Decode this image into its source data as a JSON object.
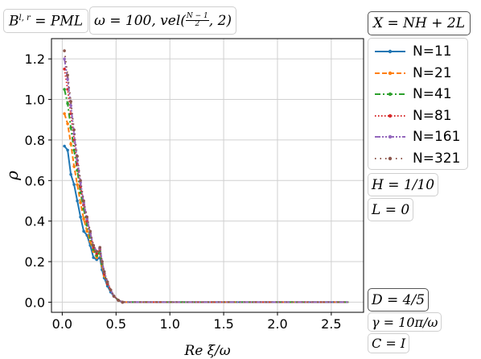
{
  "chart_data": {
    "type": "line",
    "xlabel": "Re ξ/ω",
    "ylabel": "ρ",
    "xlim": [
      -0.1,
      2.8
    ],
    "ylim": [
      -0.05,
      1.3
    ],
    "xticks": [
      "0.0",
      "0.5",
      "1.0",
      "1.5",
      "2.0",
      "2.5"
    ],
    "yticks": [
      "0.0",
      "0.2",
      "0.4",
      "0.6",
      "0.8",
      "1.0",
      "1.2"
    ],
    "grid": true,
    "legend_placement": "outside-right",
    "series": [
      {
        "name": "N=11",
        "color": "#1f77b4",
        "style": "solid",
        "points": [
          [
            0.02,
            0.77
          ],
          [
            0.05,
            0.75
          ],
          [
            0.08,
            0.63
          ],
          [
            0.11,
            0.58
          ],
          [
            0.14,
            0.5
          ],
          [
            0.17,
            0.42
          ],
          [
            0.2,
            0.35
          ],
          [
            0.23,
            0.33
          ],
          [
            0.26,
            0.28
          ],
          [
            0.29,
            0.22
          ],
          [
            0.32,
            0.21
          ],
          [
            0.35,
            0.22
          ],
          [
            0.37,
            0.16
          ],
          [
            0.39,
            0.12
          ],
          [
            0.42,
            0.08
          ],
          [
            0.45,
            0.05
          ],
          [
            0.48,
            0.03
          ],
          [
            0.52,
            0.01
          ],
          [
            0.56,
            0.0
          ],
          [
            0.8,
            0.0
          ],
          [
            1.2,
            0.0
          ],
          [
            1.6,
            0.0
          ],
          [
            2.0,
            0.0
          ],
          [
            2.4,
            0.0
          ],
          [
            2.66,
            0.0
          ]
        ]
      },
      {
        "name": "N=21",
        "color": "#ff7f0e",
        "style": "dashed",
        "points": [
          [
            0.02,
            0.93
          ],
          [
            0.05,
            0.88
          ],
          [
            0.08,
            0.78
          ],
          [
            0.11,
            0.67
          ],
          [
            0.14,
            0.58
          ],
          [
            0.17,
            0.49
          ],
          [
            0.2,
            0.41
          ],
          [
            0.23,
            0.35
          ],
          [
            0.26,
            0.3
          ],
          [
            0.29,
            0.25
          ],
          [
            0.32,
            0.22
          ],
          [
            0.35,
            0.24
          ],
          [
            0.37,
            0.18
          ],
          [
            0.39,
            0.13
          ],
          [
            0.42,
            0.09
          ],
          [
            0.45,
            0.06
          ],
          [
            0.48,
            0.03
          ],
          [
            0.52,
            0.01
          ],
          [
            0.56,
            0.0
          ],
          [
            0.8,
            0.0
          ],
          [
            1.2,
            0.0
          ],
          [
            1.6,
            0.0
          ],
          [
            2.0,
            0.0
          ],
          [
            2.4,
            0.0
          ],
          [
            2.66,
            0.0
          ]
        ]
      },
      {
        "name": "N=41",
        "color": "#2ca02c",
        "style": "dashdot",
        "points": [
          [
            0.02,
            1.05
          ],
          [
            0.05,
            0.98
          ],
          [
            0.08,
            0.86
          ],
          [
            0.11,
            0.75
          ],
          [
            0.14,
            0.65
          ],
          [
            0.17,
            0.54
          ],
          [
            0.2,
            0.46
          ],
          [
            0.23,
            0.38
          ],
          [
            0.26,
            0.32
          ],
          [
            0.29,
            0.26
          ],
          [
            0.32,
            0.23
          ],
          [
            0.35,
            0.25
          ],
          [
            0.37,
            0.19
          ],
          [
            0.39,
            0.14
          ],
          [
            0.42,
            0.09
          ],
          [
            0.45,
            0.06
          ],
          [
            0.48,
            0.03
          ],
          [
            0.52,
            0.01
          ],
          [
            0.56,
            0.0
          ],
          [
            0.8,
            0.0
          ],
          [
            1.2,
            0.0
          ],
          [
            1.6,
            0.0
          ],
          [
            2.0,
            0.0
          ],
          [
            2.4,
            0.0
          ],
          [
            2.66,
            0.0
          ]
        ]
      },
      {
        "name": "N=81",
        "color": "#d62728",
        "style": "dotted",
        "points": [
          [
            0.02,
            1.15
          ],
          [
            0.05,
            1.05
          ],
          [
            0.08,
            0.93
          ],
          [
            0.11,
            0.8
          ],
          [
            0.14,
            0.68
          ],
          [
            0.17,
            0.57
          ],
          [
            0.2,
            0.48
          ],
          [
            0.23,
            0.4
          ],
          [
            0.26,
            0.34
          ],
          [
            0.29,
            0.27
          ],
          [
            0.32,
            0.24
          ],
          [
            0.35,
            0.26
          ],
          [
            0.37,
            0.2
          ],
          [
            0.39,
            0.14
          ],
          [
            0.42,
            0.09
          ],
          [
            0.45,
            0.06
          ],
          [
            0.48,
            0.03
          ],
          [
            0.52,
            0.01
          ],
          [
            0.56,
            0.0
          ],
          [
            0.8,
            0.0
          ],
          [
            1.2,
            0.0
          ],
          [
            1.6,
            0.0
          ],
          [
            2.0,
            0.0
          ],
          [
            2.4,
            0.0
          ],
          [
            2.66,
            0.0
          ]
        ]
      },
      {
        "name": "N=161",
        "color": "#9467bd",
        "style": "dashdotdot",
        "points": [
          [
            0.02,
            1.2
          ],
          [
            0.05,
            1.1
          ],
          [
            0.08,
            0.97
          ],
          [
            0.11,
            0.83
          ],
          [
            0.14,
            0.7
          ],
          [
            0.17,
            0.59
          ],
          [
            0.2,
            0.49
          ],
          [
            0.23,
            0.41
          ],
          [
            0.26,
            0.34
          ],
          [
            0.29,
            0.28
          ],
          [
            0.32,
            0.25
          ],
          [
            0.35,
            0.27
          ],
          [
            0.37,
            0.2
          ],
          [
            0.39,
            0.15
          ],
          [
            0.42,
            0.1
          ],
          [
            0.45,
            0.06
          ],
          [
            0.48,
            0.03
          ],
          [
            0.52,
            0.01
          ],
          [
            0.56,
            0.0
          ],
          [
            0.8,
            0.0
          ],
          [
            1.2,
            0.0
          ],
          [
            1.6,
            0.0
          ],
          [
            2.0,
            0.0
          ],
          [
            2.4,
            0.0
          ],
          [
            2.66,
            0.0
          ]
        ]
      },
      {
        "name": "N=321",
        "color": "#8c564b",
        "style": "loosedot",
        "points": [
          [
            0.02,
            1.24
          ],
          [
            0.05,
            1.12
          ],
          [
            0.08,
            0.99
          ],
          [
            0.11,
            0.85
          ],
          [
            0.14,
            0.72
          ],
          [
            0.17,
            0.6
          ],
          [
            0.2,
            0.5
          ],
          [
            0.23,
            0.42
          ],
          [
            0.26,
            0.35
          ],
          [
            0.29,
            0.28
          ],
          [
            0.32,
            0.25
          ],
          [
            0.35,
            0.27
          ],
          [
            0.37,
            0.2
          ],
          [
            0.39,
            0.15
          ],
          [
            0.42,
            0.1
          ],
          [
            0.45,
            0.06
          ],
          [
            0.48,
            0.03
          ],
          [
            0.52,
            0.01
          ],
          [
            0.56,
            0.0
          ],
          [
            0.8,
            0.0
          ],
          [
            1.2,
            0.0
          ],
          [
            1.6,
            0.0
          ],
          [
            2.0,
            0.0
          ],
          [
            2.4,
            0.0
          ],
          [
            2.66,
            0.0
          ]
        ]
      }
    ]
  },
  "annotations": {
    "boundary": {
      "prefix": "B",
      "sup": "l, r",
      "rest": " = PML"
    },
    "omega": {
      "text": "ω = 100, vel(",
      "frac_num": "N − 1",
      "frac_den": "2",
      "tail": ", 2)"
    },
    "x_def": "X = NH + 2L",
    "h": "H = 1/10",
    "l": "L = 0",
    "d": "D = 4/5",
    "gamma": "γ = 10π/ω",
    "c": "C = I"
  }
}
